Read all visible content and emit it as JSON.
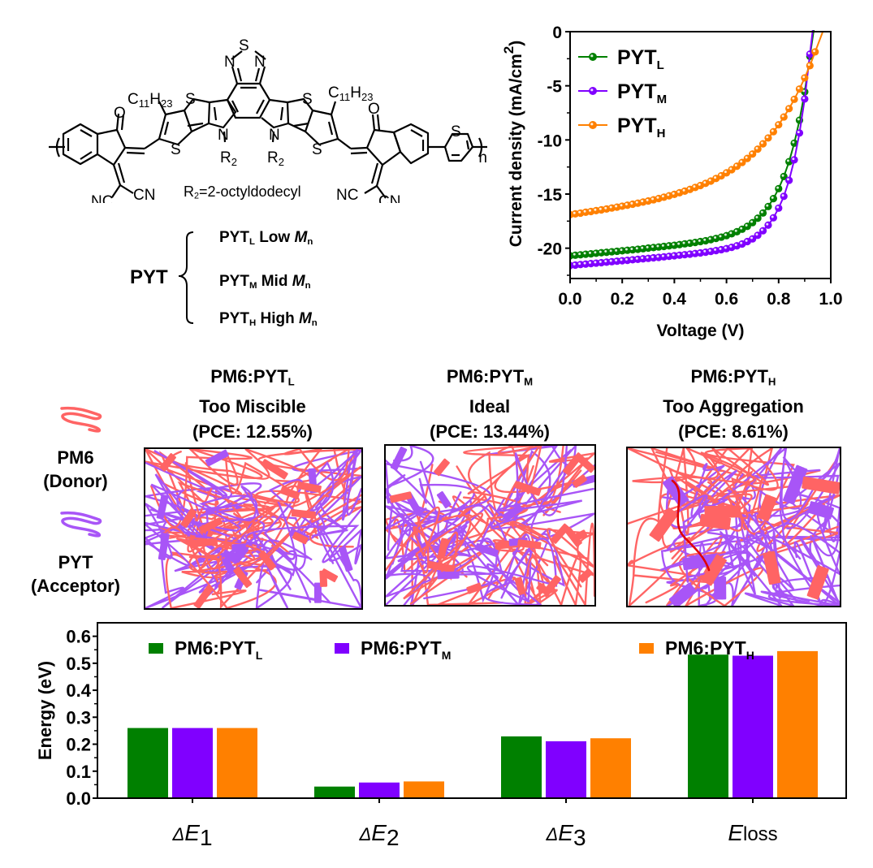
{
  "colors": {
    "pyt_l": "#008000",
    "pyt_m": "#8000ff",
    "pyt_h": "#ff8000",
    "pm6_donor": "#ff6464",
    "pyt_acceptor": "#a855f7",
    "pm6_highlight": "#e00000"
  },
  "structure": {
    "labels": {
      "alkyl_left": "C11H23",
      "alkyl_right": "C11H23",
      "r2_left": "R2",
      "r2_right": "R2",
      "s_atom": "S",
      "n_atom": "N",
      "o_atom": "O",
      "cn": "CN",
      "nc": "NC",
      "repeat": "n"
    },
    "r2_definition": {
      "prefix": "R",
      "sub": "2",
      "rest": "=2-octyldodecyl"
    },
    "pyt_root": "PYT",
    "variants": [
      {
        "name": "PYT",
        "sub": "L",
        "desc": "Low",
        "mn": "M",
        "mn_sub": "n"
      },
      {
        "name": "PYT",
        "sub": "M",
        "desc": "Mid",
        "mn": "M",
        "mn_sub": "n"
      },
      {
        "name": "PYT",
        "sub": "H",
        "desc": "High",
        "mn": "M",
        "mn_sub": "n"
      }
    ]
  },
  "morphology": {
    "legend": [
      {
        "name": "PM6",
        "role": "(Donor)"
      },
      {
        "name": "PYT",
        "role": "(Acceptor)"
      }
    ],
    "panels": [
      {
        "title": "PM6:PYT",
        "sub": "L",
        "desc": "Too Miscible",
        "pce": "(PCE: 12.55%)"
      },
      {
        "title": "PM6:PYT",
        "sub": "M",
        "desc": "Ideal",
        "pce": "(PCE: 13.44%)"
      },
      {
        "title": "PM6:PYT",
        "sub": "H",
        "desc": "Too Aggregation",
        "pce": "(PCE: 8.61%)"
      }
    ]
  },
  "chart_data": [
    {
      "type": "line",
      "title": "",
      "xlabel": "Voltage (V)",
      "ylabel": "Current density (mA/cm2)",
      "ylabel_main": "Current density (mA/cm",
      "ylabel_sup": "2",
      "ylabel_end": ")",
      "xlim": [
        0.0,
        1.0
      ],
      "ylim": [
        -22.8,
        0
      ],
      "xticks": [
        "0.0",
        "0.2",
        "0.4",
        "0.6",
        "0.8",
        "1.0"
      ],
      "xtick_values": [
        0.0,
        0.2,
        0.4,
        0.6,
        0.8,
        1.0
      ],
      "yticks": [
        "0",
        "-5",
        "-10",
        "-15",
        "-20"
      ],
      "ytick_values": [
        0,
        -5,
        -10,
        -15,
        -20
      ],
      "legend_position": "top-left",
      "marker": "circle",
      "x": [
        0.0,
        0.02,
        0.04,
        0.06,
        0.08,
        0.1,
        0.12,
        0.14,
        0.16,
        0.18,
        0.2,
        0.22,
        0.24,
        0.26,
        0.28,
        0.3,
        0.32,
        0.34,
        0.36,
        0.38,
        0.4,
        0.42,
        0.44,
        0.46,
        0.48,
        0.5,
        0.52,
        0.54,
        0.56,
        0.58,
        0.6,
        0.62,
        0.64,
        0.66,
        0.68,
        0.7,
        0.72,
        0.74,
        0.76,
        0.78,
        0.8,
        0.82,
        0.84,
        0.86,
        0.88,
        0.9,
        0.92,
        0.94
      ],
      "series": [
        {
          "name": "PYT",
          "sub": "L",
          "color": "#008000",
          "values": [
            -20.7,
            -20.65,
            -20.61,
            -20.56,
            -20.52,
            -20.47,
            -20.42,
            -20.38,
            -20.33,
            -20.29,
            -20.24,
            -20.19,
            -20.15,
            -20.1,
            -20.05,
            -19.99,
            -19.94,
            -19.89,
            -19.84,
            -19.78,
            -19.73,
            -19.67,
            -19.6,
            -19.54,
            -19.47,
            -19.39,
            -19.31,
            -19.21,
            -19.1,
            -18.98,
            -18.84,
            -18.67,
            -18.48,
            -18.25,
            -17.98,
            -17.64,
            -17.23,
            -16.75,
            -16.15,
            -15.42,
            -14.5,
            -13.38,
            -12.01,
            -10.3,
            -8.18,
            -5.56,
            -2.28,
            null
          ]
        },
        {
          "name": "PYT",
          "sub": "M",
          "color": "#8000ff",
          "values": [
            -21.6,
            -21.56,
            -21.51,
            -21.47,
            -21.42,
            -21.38,
            -21.34,
            -21.29,
            -21.25,
            -21.2,
            -21.16,
            -21.12,
            -21.07,
            -21.03,
            -20.98,
            -20.94,
            -20.89,
            -20.85,
            -20.8,
            -20.75,
            -20.7,
            -20.65,
            -20.6,
            -20.55,
            -20.49,
            -20.44,
            -20.37,
            -20.3,
            -20.22,
            -20.14,
            -20.04,
            -19.92,
            -19.78,
            -19.61,
            -19.39,
            -19.14,
            -18.81,
            -18.39,
            -17.87,
            -17.19,
            -16.3,
            -15.21,
            -13.73,
            -11.84,
            -9.36,
            -6.22,
            -2.08,
            null
          ]
        },
        {
          "name": "PYT",
          "sub": "H",
          "color": "#ff8000",
          "values": [
            -16.9,
            -16.83,
            -16.76,
            -16.68,
            -16.61,
            -16.53,
            -16.46,
            -16.38,
            -16.29,
            -16.21,
            -16.12,
            -16.03,
            -15.94,
            -15.84,
            -15.74,
            -15.64,
            -15.53,
            -15.41,
            -15.29,
            -15.16,
            -15.03,
            -14.88,
            -14.73,
            -14.57,
            -14.39,
            -14.21,
            -14.01,
            -13.8,
            -13.56,
            -13.31,
            -13.04,
            -12.75,
            -12.43,
            -12.08,
            -11.71,
            -11.3,
            -10.85,
            -10.36,
            -9.82,
            -9.24,
            -8.6,
            -7.88,
            -7.11,
            -6.25,
            -5.3,
            -4.27,
            -3.14,
            -1.87
          ]
        }
      ]
    },
    {
      "type": "bar",
      "title": "",
      "xlabel": "",
      "ylabel": "Energy (eV)",
      "ylim": [
        0,
        0.65
      ],
      "yticks": [
        "0.0",
        "0.1",
        "0.2",
        "0.3",
        "0.4",
        "0.5",
        "0.6"
      ],
      "ytick_values": [
        0,
        0.1,
        0.2,
        0.3,
        0.4,
        0.5,
        0.6
      ],
      "categories": [
        {
          "prefix": "Δ",
          "main": "E",
          "sub": "1"
        },
        {
          "prefix": "Δ",
          "main": "E",
          "sub": "2"
        },
        {
          "prefix": "Δ",
          "main": "E",
          "sub": "3"
        },
        {
          "prefix": "",
          "main": "E",
          "sub": "loss"
        }
      ],
      "legend_position": "top",
      "series": [
        {
          "name": "PM6:PYT",
          "sub": "L",
          "color": "#008000",
          "values": [
            0.26,
            0.043,
            0.229,
            0.532
          ]
        },
        {
          "name": "PM6:PYT",
          "sub": "M",
          "color": "#8000ff",
          "values": [
            0.26,
            0.058,
            0.211,
            0.528
          ]
        },
        {
          "name": "PM6:PYT",
          "sub": "H",
          "color": "#ff8000",
          "values": [
            0.26,
            0.062,
            0.222,
            0.545
          ]
        }
      ]
    }
  ]
}
